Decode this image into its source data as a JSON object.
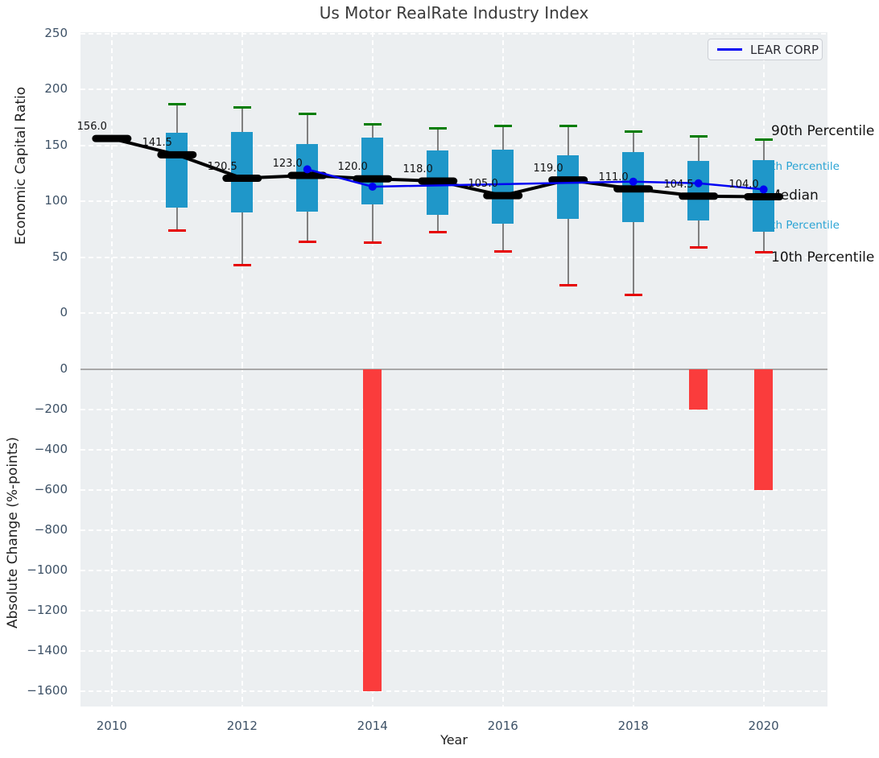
{
  "title": "Us Motor RealRate Industry Index",
  "legend": {
    "label": "LEAR CORP"
  },
  "percentile_labels": {
    "p90": "90th Percentile",
    "p75": "75th Percentile",
    "median": "Median",
    "p25": "25th Percentile",
    "p10": "10th Percentile"
  },
  "chart_data": {
    "type": "boxplot-with-line-and-bars",
    "xlabel": "Year",
    "xticks": [
      2010,
      2012,
      2014,
      2016,
      2018,
      2020
    ],
    "xlim": [
      2009.52,
      2020.98
    ],
    "top_panel": {
      "ylabel": "Economic Capital Ratio",
      "yticks": [
        0,
        50,
        100,
        150,
        200,
        250
      ],
      "ylim": [
        -48.2,
        251.1
      ],
      "grid": true,
      "years": [
        2010,
        2011,
        2012,
        2013,
        2014,
        2015,
        2016,
        2017,
        2018,
        2019,
        2020
      ],
      "medians": [
        156.0,
        141.5,
        120.5,
        123.0,
        120.0,
        118.0,
        105.0,
        119.0,
        111.0,
        104.5,
        104.0
      ],
      "boxes": [
        {
          "year": 2011,
          "q1": 94,
          "q3": 161,
          "p10": 74,
          "p90": 187
        },
        {
          "year": 2012,
          "q1": 90,
          "q3": 162,
          "p10": 43,
          "p90": 184
        },
        {
          "year": 2013,
          "q1": 91,
          "q3": 151,
          "p10": 64,
          "p90": 178
        },
        {
          "year": 2014,
          "q1": 97,
          "q3": 157,
          "p10": 63,
          "p90": 169
        },
        {
          "year": 2015,
          "q1": 88,
          "q3": 145,
          "p10": 72,
          "p90": 165
        },
        {
          "year": 2016,
          "q1": 80,
          "q3": 146,
          "p10": 55,
          "p90": 167
        },
        {
          "year": 2017,
          "q1": 84,
          "q3": 141,
          "p10": 25,
          "p90": 167
        },
        {
          "year": 2018,
          "q1": 81,
          "q3": 144,
          "p10": 16,
          "p90": 162
        },
        {
          "year": 2019,
          "q1": 83,
          "q3": 136,
          "p10": 59,
          "p90": 158
        },
        {
          "year": 2020,
          "q1": 73,
          "q3": 137,
          "p10": 54,
          "p90": 155
        }
      ],
      "lear_line": {
        "name": "LEAR CORP",
        "points": [
          [
            2013,
            128.5
          ],
          [
            2014,
            113.0
          ],
          [
            2018,
            117.5
          ],
          [
            2019,
            116.0
          ],
          [
            2020,
            110.5
          ]
        ]
      }
    },
    "bottom_panel": {
      "ylabel": "Absolute Change (%-points)",
      "yticks": [
        0,
        -200,
        -400,
        -600,
        -800,
        -1000,
        -1200,
        -1400,
        -1600
      ],
      "ylim": [
        -1676,
        12
      ],
      "bars": [
        {
          "year": 2014,
          "value": -1600
        },
        {
          "year": 2019,
          "value": -200
        },
        {
          "year": 2020,
          "value": -600
        }
      ]
    }
  },
  "colors": {
    "plot_bg": "#eceff1",
    "box_fill": "#1f97c9",
    "whisker": "#7f7f7f",
    "cap_high": "#007d00",
    "cap_low": "#e60000",
    "median_line": "#000000",
    "lear_line": "#0202f2",
    "bar": "#fa3c3c",
    "tick_text": "#3d5166",
    "percentile_text_blue": "#29a3d4",
    "annotation_text": "#131313",
    "grid": "#ffffff",
    "zero_line": "#a8a8a8"
  }
}
